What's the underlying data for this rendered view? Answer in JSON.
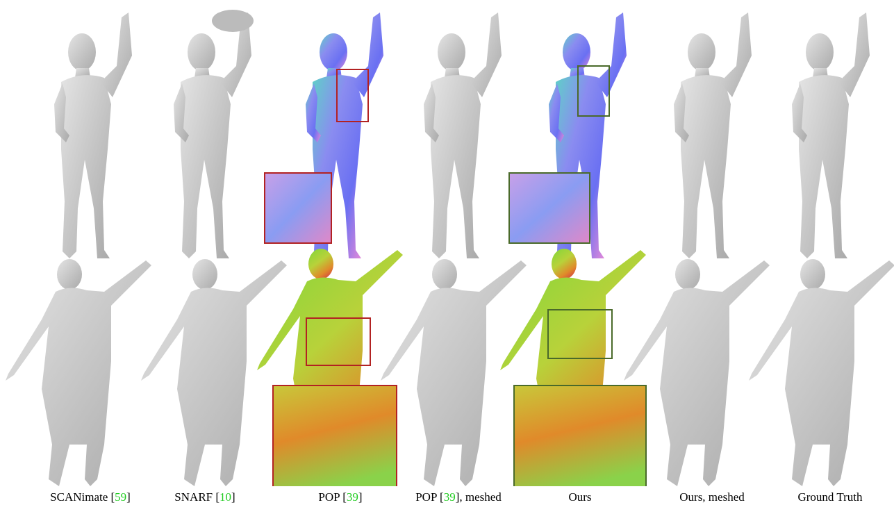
{
  "figure": {
    "captions": [
      {
        "before": "SCANimate [",
        "cite": "59",
        "after": "]"
      },
      {
        "before": "SNARF [",
        "cite": "10",
        "after": "]"
      },
      {
        "before": "POP [",
        "cite": "39",
        "after": "]"
      },
      {
        "before": "POP [",
        "cite": "39",
        "after": "], meshed"
      },
      {
        "before": "Ours"
      },
      {
        "before": "Ours, meshed"
      },
      {
        "before": "Ground Truth"
      }
    ]
  }
}
